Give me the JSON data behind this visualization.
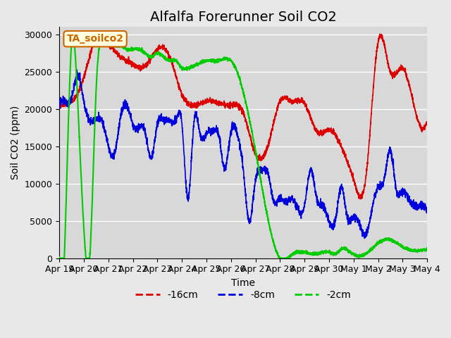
{
  "title": "Alfalfa Forerunner Soil CO2",
  "xlabel": "Time",
  "ylabel": "Soil CO2 (ppm)",
  "ylim": [
    0,
    31000
  ],
  "yticks": [
    0,
    5000,
    10000,
    15000,
    20000,
    25000,
    30000
  ],
  "legend_label": "TA_soilco2",
  "line_labels": [
    "-16cm",
    "-8cm",
    "-2cm"
  ],
  "line_colors": [
    "#dd0000",
    "#0000dd",
    "#00cc00"
  ],
  "bg_color": "#e8e8e8",
  "plot_bg_color": "#e0e0e0",
  "title_fontsize": 14,
  "axis_fontsize": 10,
  "tick_fontsize": 9
}
